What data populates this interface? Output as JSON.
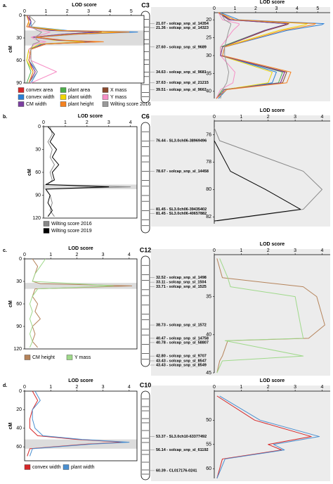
{
  "panels": [
    {
      "label": "a.",
      "chromosome": "C3",
      "markers": [
        "21.07 - solcap_snp_sl_14354",
        "21.36 - solcap_snp_sl_14323",
        "27.60 - solcap_snp_sl_9689",
        "34.63 - solcap_snp_sl_9681",
        "37.63 - solcap_snp_sl_21215",
        "39.51 - solcap_snp_sl_9663"
      ]
    },
    {
      "label": "b.",
      "chromosome": "C6",
      "markers": [
        "76.44 - SL3.0ch06-38969496",
        "78.67 - solcap_snp_sl_14458",
        "81.45 - SL3.0ch06-39435402",
        "81.45 - SL3.0ch06-40657882"
      ]
    },
    {
      "label": "c.",
      "chromosome": "C12",
      "markers": [
        "32.52 - solcap_snp_sl_1498",
        "33.11 - solcap_snp_sl_1504",
        "33.71 - solcap_snp_sl_1525",
        "38.73 - solcap_snp_sl_1572",
        "40.47 - solcap_snp_sl_14758",
        "40.78 - solcap_snp_sl_58807",
        "42.80 - solcap_snp_sl_9707",
        "43.43 - solcap_snp_sl_8547",
        "43.43 - solcap_snp_sl_8549"
      ]
    },
    {
      "label": "d.",
      "chromosome": "C10",
      "markers": [
        "53.37 - SL3.0ch10-63377492",
        "56.14 - solcap_snp_sl_61192",
        "60.39 - CL017176-0241"
      ]
    }
  ],
  "chart_data": [
    {
      "type": "line",
      "xlabel": "LOD score",
      "ylabel": "cM",
      "xlim": [
        0,
        5.6
      ],
      "xticks": [
        0,
        1,
        2,
        3,
        4,
        5
      ],
      "ylim": [
        0,
        90
      ],
      "yticks": [
        0,
        30,
        60,
        90
      ],
      "interval": [
        20,
        40
      ],
      "y": [
        0,
        8,
        15,
        20,
        22,
        25,
        29,
        33,
        35,
        38,
        45,
        60,
        75,
        90
      ],
      "series": [
        {
          "name": "convex area",
          "color": "#d62728",
          "values": [
            0.1,
            0.3,
            0.2,
            1.5,
            3.6,
            2.0,
            0.5,
            1.8,
            3.4,
            1.0,
            0.3,
            0.2,
            0.5,
            0.2
          ]
        },
        {
          "name": "plant area",
          "color": "#4daf4a",
          "values": [
            0.1,
            0.2,
            0.1,
            1.2,
            3.5,
            1.8,
            0.4,
            1.6,
            3.3,
            0.9,
            0.2,
            0.1,
            0.3,
            0.1
          ]
        },
        {
          "name": "X mass",
          "color": "#8c4a2e",
          "values": [
            0.2,
            0.3,
            0.2,
            1.4,
            3.6,
            1.9,
            0.4,
            1.7,
            3.5,
            1.0,
            0.3,
            0.2,
            0.4,
            0.2
          ]
        },
        {
          "name": "convex width",
          "color": "#2a7fd6",
          "values": [
            0.1,
            0.3,
            0.3,
            2.0,
            5.3,
            2.5,
            0.6,
            1.5,
            3.0,
            0.8,
            0.3,
            0.2,
            0.6,
            0.3
          ]
        },
        {
          "name": "plant width",
          "color": "#f2d600",
          "values": [
            0.1,
            0.2,
            0.2,
            1.8,
            4.5,
            2.2,
            0.5,
            1.4,
            2.8,
            0.7,
            0.2,
            0.1,
            0.4,
            0.2
          ]
        },
        {
          "name": "Y mass",
          "color": "#f78fc6",
          "values": [
            0.2,
            0.2,
            0.1,
            0.8,
            1.2,
            0.9,
            0.3,
            0.6,
            1.0,
            0.5,
            0.2,
            0.3,
            1.5,
            0.3
          ]
        },
        {
          "name": "CM width",
          "color": "#7b3fa0",
          "values": [
            0.1,
            0.3,
            0.2,
            1.3,
            3.5,
            1.8,
            0.4,
            1.6,
            3.4,
            0.9,
            0.3,
            0.2,
            0.5,
            0.2
          ]
        },
        {
          "name": "plant height",
          "color": "#f58220",
          "values": [
            0.1,
            0.2,
            0.1,
            1.6,
            4.9,
            2.4,
            0.5,
            1.9,
            3.7,
            1.0,
            0.3,
            0.2,
            0.4,
            0.2
          ]
        },
        {
          "name": "Wilting score 2016",
          "color": "#999999",
          "values": [
            0.2,
            0.5,
            0.3,
            0.6,
            0.8,
            0.7,
            0.5,
            0.6,
            0.7,
            0.4,
            0.3,
            0.3,
            0.6,
            0.2
          ]
        }
      ]
    },
    {
      "type": "line",
      "xlabel": "LOD score",
      "xlim": [
        0,
        5.6
      ],
      "xticks": [
        0,
        1,
        2,
        3,
        4,
        5
      ],
      "ylim": [
        18,
        42
      ],
      "yticks": [
        20,
        25,
        30,
        35,
        40
      ],
      "y": [
        18,
        20,
        21.07,
        21.36,
        23,
        27.6,
        30,
        34.63,
        37.63,
        39.51,
        42
      ],
      "series": [
        {
          "name": "convex area",
          "color": "#d62728",
          "values": [
            0.2,
            0.8,
            3.6,
            3.5,
            2.5,
            0.4,
            0.3,
            3.4,
            3.2,
            0.5,
            0.1
          ]
        },
        {
          "name": "plant area",
          "color": "#4daf4a",
          "values": [
            0.2,
            0.7,
            3.5,
            3.4,
            2.4,
            0.3,
            0.3,
            3.3,
            3.1,
            0.4,
            0.1
          ]
        },
        {
          "name": "X mass",
          "color": "#8c4a2e",
          "values": [
            0.2,
            0.8,
            3.6,
            3.5,
            2.5,
            0.4,
            0.3,
            3.5,
            3.3,
            0.5,
            0.1
          ]
        },
        {
          "name": "convex width",
          "color": "#2a7fd6",
          "values": [
            0.3,
            1.2,
            5.3,
            5.2,
            3.5,
            0.5,
            0.4,
            3.0,
            2.8,
            0.6,
            0.2
          ]
        },
        {
          "name": "plant width",
          "color": "#f2d600",
          "values": [
            0.2,
            1.0,
            4.5,
            4.4,
            3.1,
            0.4,
            0.3,
            2.8,
            2.6,
            0.5,
            0.1
          ]
        },
        {
          "name": "Y mass",
          "color": "#f78fc6",
          "values": [
            0.2,
            0.4,
            1.2,
            1.2,
            0.9,
            0.3,
            0.3,
            1.0,
            0.9,
            0.3,
            0.1
          ]
        },
        {
          "name": "CM width",
          "color": "#7b3fa0",
          "values": [
            0.2,
            0.7,
            3.5,
            3.4,
            2.4,
            0.4,
            0.3,
            3.4,
            3.2,
            0.5,
            0.1
          ]
        },
        {
          "name": "plant height",
          "color": "#f58220",
          "values": [
            0.2,
            1.0,
            4.9,
            4.8,
            3.3,
            0.5,
            0.4,
            3.7,
            3.5,
            0.6,
            0.1
          ]
        },
        {
          "name": "Wilting score 2016",
          "color": "#999999",
          "values": [
            0.3,
            0.5,
            0.8,
            0.8,
            0.7,
            0.5,
            0.5,
            0.7,
            0.6,
            0.4,
            0.3
          ]
        }
      ]
    },
    {
      "type": "line",
      "xlabel": "LOD score",
      "ylabel": "cM",
      "xlim": [
        0,
        4.3
      ],
      "xticks": [
        0,
        1,
        2,
        3,
        4
      ],
      "ylim": [
        0,
        120
      ],
      "yticks": [
        0,
        30,
        60,
        90,
        120
      ],
      "interval": [
        76,
        82
      ],
      "y": [
        0,
        10,
        20,
        30,
        40,
        50,
        60,
        70,
        76,
        79,
        82,
        90,
        100,
        110,
        118
      ],
      "series": [
        {
          "name": "Wilting score 2016",
          "color": "#888888",
          "values": [
            0.3,
            0.4,
            0.2,
            0.4,
            0.3,
            0.5,
            0.3,
            0.4,
            0.2,
            4.0,
            0.1,
            0.3,
            0.4,
            0.3,
            0.5
          ]
        },
        {
          "name": "Wilting score 2019",
          "color": "#000000",
          "values": [
            0.2,
            0.5,
            0.3,
            0.6,
            0.4,
            0.7,
            0.4,
            0.5,
            0.1,
            3.0,
            0.1,
            0.3,
            0.2,
            0.4,
            0.2
          ]
        }
      ]
    },
    {
      "type": "line",
      "xlabel": "LOD score",
      "xlim": [
        0,
        4.3
      ],
      "xticks": [
        0,
        1,
        2,
        3,
        4
      ],
      "ylim": [
        75,
        82.5
      ],
      "yticks": [
        76,
        78,
        80,
        82
      ],
      "y": [
        75.5,
        76.44,
        78.67,
        80,
        81.45,
        82.3
      ],
      "series": [
        {
          "name": "Wilting score 2016",
          "color": "#888888",
          "values": [
            0,
            0.2,
            3.3,
            4.0,
            3.3,
            0.1
          ]
        },
        {
          "name": "Wilting score 2019",
          "color": "#000000",
          "values": [
            null,
            0,
            0.6,
            1.9,
            3.2,
            0
          ]
        }
      ]
    },
    {
      "type": "line",
      "xlabel": "LOD score",
      "ylabel": "cM",
      "xlim": [
        0,
        4.3
      ],
      "xticks": [
        0,
        1,
        2,
        3,
        4
      ],
      "ylim": [
        0,
        120
      ],
      "yticks": [
        0,
        30,
        60,
        90,
        120
      ],
      "interval": [
        32,
        40
      ],
      "y": [
        0,
        10,
        20,
        30,
        33,
        36,
        40,
        50,
        60,
        70,
        80,
        90,
        100,
        110,
        118
      ],
      "series": [
        {
          "name": "CM height",
          "color": "#b5835a",
          "values": [
            0.3,
            0.5,
            0.4,
            0.3,
            0.6,
            4.1,
            0.4,
            0.3,
            0.5,
            0.4,
            0.6,
            0.3,
            0.4,
            0.3,
            0.5
          ]
        },
        {
          "name": "Y mass",
          "color": "#9fd98a",
          "values": [
            0.8,
            0.6,
            0.4,
            0.3,
            2.0,
            3.4,
            0.5,
            0.3,
            0.2,
            0.3,
            0.2,
            0.3,
            0.2,
            0.3,
            0.2
          ]
        }
      ]
    },
    {
      "type": "line",
      "xlabel": "LOD score",
      "xlim": [
        0,
        4.3
      ],
      "xticks": [
        0,
        1,
        2,
        3,
        4
      ],
      "ylim": [
        29.5,
        45
      ],
      "yticks": [
        35,
        40,
        45
      ],
      "y": [
        30,
        32.52,
        33.71,
        35,
        38.73,
        40.47,
        40.78,
        42.8,
        43.43,
        45
      ],
      "series": [
        {
          "name": "CM height",
          "color": "#b5835a",
          "values": [
            0.1,
            0.3,
            3.3,
            3.8,
            4.1,
            3.5,
            0.5,
            0.3,
            0.2,
            0.1
          ]
        },
        {
          "name": "Y mass",
          "color": "#9fd98a",
          "values": [
            0.2,
            0.5,
            0.6,
            3.0,
            3.2,
            3.3,
            0.4,
            3.3,
            0.3,
            0.1
          ]
        }
      ]
    },
    {
      "type": "line",
      "xlabel": "LOD score",
      "ylabel": "cM",
      "xlim": [
        0,
        4.3
      ],
      "xticks": [
        0,
        1,
        2,
        3,
        4
      ],
      "ylim": [
        0,
        75
      ],
      "yticks": [
        0,
        20,
        40,
        60
      ],
      "interval": [
        52,
        62
      ],
      "y": [
        0,
        10,
        20,
        30,
        40,
        48,
        52,
        55,
        57,
        62,
        70
      ],
      "series": [
        {
          "name": "convex width",
          "color": "#d62728",
          "values": [
            0.3,
            0.5,
            0.3,
            0.2,
            0.2,
            0.5,
            2.0,
            3.8,
            2.4,
            0.2,
            0.1
          ]
        },
        {
          "name": "plant width",
          "color": "#4a8fd0",
          "values": [
            0.4,
            0.6,
            0.3,
            0.3,
            0.4,
            0.7,
            2.2,
            4.0,
            2.6,
            0.3,
            0.2
          ]
        }
      ]
    },
    {
      "type": "line",
      "xlabel": "LOD score",
      "xlim": [
        0,
        4.3
      ],
      "xticks": [
        0,
        1,
        2,
        3,
        4
      ],
      "ylim": [
        44,
        62
      ],
      "yticks": [
        50,
        55,
        60
      ],
      "y": [
        45,
        50,
        53.37,
        55,
        56.14,
        58,
        62
      ],
      "series": [
        {
          "name": "convex width",
          "color": "#d62728",
          "values": [
            0.1,
            1.5,
            3.6,
            2.0,
            2.5,
            0.3,
            0.1
          ]
        },
        {
          "name": "plant width",
          "color": "#4a8fd0",
          "values": [
            0.2,
            1.7,
            3.9,
            2.2,
            2.6,
            0.4,
            0.1
          ]
        }
      ]
    }
  ]
}
